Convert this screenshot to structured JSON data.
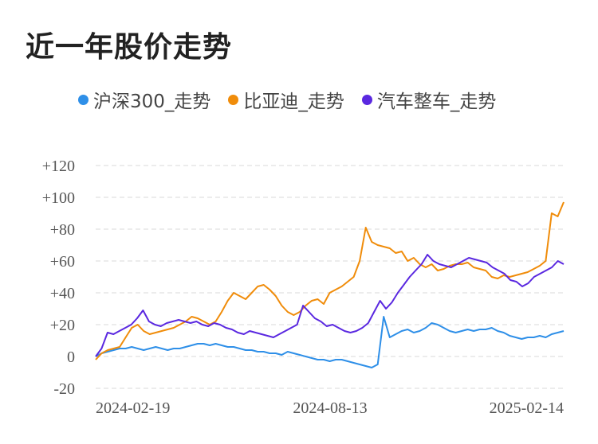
{
  "title": "近一年股价走势",
  "chart_data": {
    "type": "line",
    "title": "近一年股价走势",
    "xlabel": "",
    "ylabel": "",
    "x_tick_labels": [
      "2024-02-19",
      "2024-08-13",
      "2025-02-14"
    ],
    "y_tick_labels": [
      "+120",
      "+100",
      "+80",
      "+60",
      "+40",
      "+20",
      "0",
      "-20"
    ],
    "y_ticks": [
      120,
      100,
      80,
      60,
      40,
      20,
      0,
      -20
    ],
    "ylim": [
      -20,
      120
    ],
    "grid": true,
    "legend_position": "top",
    "series": [
      {
        "name": "沪深300_走势",
        "color": "#2e8fe8",
        "values": [
          0,
          2,
          3,
          4,
          5,
          5,
          6,
          5,
          4,
          5,
          6,
          5,
          4,
          5,
          5,
          6,
          7,
          8,
          8,
          7,
          8,
          7,
          6,
          6,
          5,
          4,
          4,
          3,
          3,
          2,
          2,
          1,
          3,
          2,
          1,
          0,
          -1,
          -2,
          -2,
          -3,
          -2,
          -2,
          -3,
          -4,
          -5,
          -6,
          -7,
          -5,
          25,
          12,
          14,
          16,
          17,
          15,
          16,
          18,
          21,
          20,
          18,
          16,
          15,
          16,
          17,
          16,
          17,
          17,
          18,
          16,
          15,
          13,
          12,
          11,
          12,
          12,
          13,
          12,
          14,
          15,
          16
        ]
      },
      {
        "name": "比亚迪_走势",
        "color": "#f08c0a",
        "values": [
          -2,
          2,
          4,
          5,
          6,
          12,
          18,
          20,
          16,
          14,
          15,
          16,
          17,
          18,
          20,
          22,
          25,
          24,
          22,
          20,
          22,
          28,
          35,
          40,
          38,
          36,
          40,
          44,
          45,
          42,
          38,
          32,
          28,
          26,
          28,
          32,
          35,
          36,
          33,
          40,
          42,
          44,
          47,
          50,
          60,
          81,
          72,
          70,
          69,
          68,
          65,
          66,
          60,
          62,
          58,
          56,
          58,
          54,
          55,
          57,
          58,
          58,
          59,
          56,
          55,
          54,
          50,
          49,
          51,
          50,
          51,
          52,
          53,
          55,
          57,
          60,
          90,
          88,
          97
        ]
      },
      {
        "name": "汽车整车_走势",
        "color": "#5a28e0",
        "values": [
          0,
          5,
          15,
          14,
          16,
          18,
          20,
          24,
          29,
          22,
          20,
          19,
          21,
          22,
          23,
          22,
          21,
          22,
          20,
          19,
          21,
          20,
          18,
          17,
          15,
          14,
          16,
          15,
          14,
          13,
          12,
          14,
          16,
          18,
          20,
          32,
          28,
          24,
          22,
          19,
          20,
          18,
          16,
          15,
          16,
          18,
          21,
          28,
          35,
          30,
          34,
          40,
          45,
          50,
          54,
          58,
          64,
          60,
          58,
          57,
          56,
          58,
          60,
          62,
          61,
          60,
          59,
          56,
          54,
          52,
          48,
          47,
          44,
          46,
          50,
          52,
          54,
          56,
          60,
          58
        ]
      }
    ]
  }
}
